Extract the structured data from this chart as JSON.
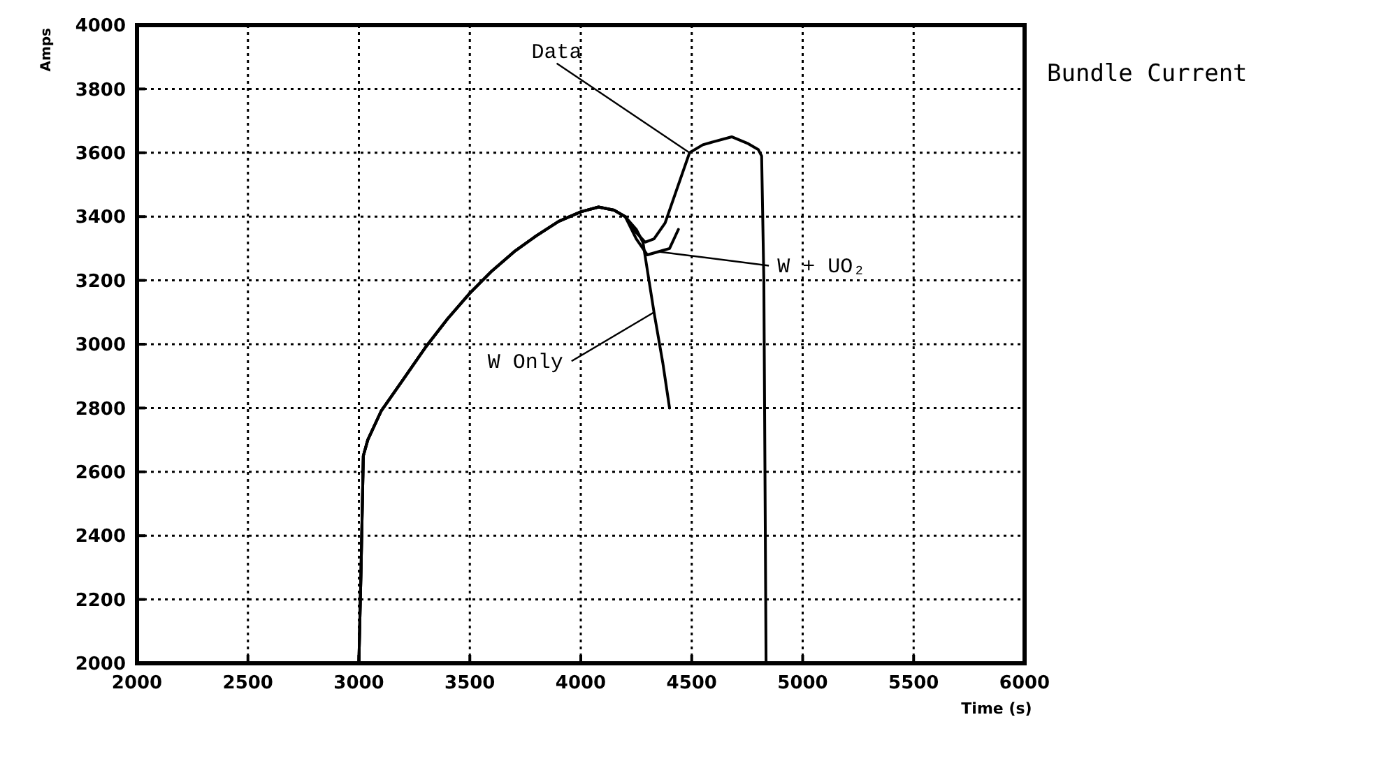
{
  "chart_data": {
    "type": "line",
    "title": "Bundle Current",
    "xlabel": "Time (s)",
    "ylabel": "Amps",
    "xlim": [
      2000,
      6000
    ],
    "xticks": [
      2000,
      2500,
      3000,
      3500,
      4000,
      4500,
      5000,
      5500,
      6000
    ],
    "ylim": [
      2000,
      4000
    ],
    "yticks": [
      2000,
      2200,
      2400,
      2600,
      2800,
      3000,
      3200,
      3400,
      3600,
      3800,
      4000
    ],
    "grid": true,
    "line_style": "solid",
    "marker": "none",
    "series": [
      {
        "name": "Data",
        "color": "#000000",
        "x": [
          3000,
          3010,
          3020,
          3040,
          3100,
          3200,
          3300,
          3400,
          3500,
          3600,
          3700,
          3800,
          3900,
          4000,
          4080,
          4150,
          4200,
          4250,
          4290,
          4330,
          4380,
          4430,
          4490,
          4550,
          4600,
          4680,
          4750,
          4800,
          4815,
          4825,
          4835
        ],
        "values": [
          2000,
          2300,
          2650,
          2700,
          2790,
          2890,
          2990,
          3080,
          3160,
          3230,
          3290,
          3340,
          3385,
          3415,
          3430,
          3420,
          3400,
          3350,
          3320,
          3330,
          3380,
          3480,
          3600,
          3625,
          3635,
          3650,
          3630,
          3610,
          3590,
          3200,
          2000
        ]
      },
      {
        "name": "W + UO₂",
        "color": "#000000",
        "x": [
          3000,
          3010,
          3020,
          3040,
          3100,
          3200,
          3300,
          3400,
          3500,
          3600,
          3700,
          3800,
          3900,
          4000,
          4080,
          4150,
          4200,
          4250,
          4300,
          4350,
          4400,
          4440
        ],
        "values": [
          2000,
          2300,
          2650,
          2700,
          2790,
          2890,
          2990,
          3080,
          3160,
          3230,
          3290,
          3340,
          3385,
          3415,
          3430,
          3420,
          3400,
          3330,
          3280,
          3290,
          3300,
          3360
        ]
      },
      {
        "name": "W Only",
        "color": "#000000",
        "x": [
          3000,
          3010,
          3020,
          3040,
          3100,
          3200,
          3300,
          3400,
          3500,
          3600,
          3700,
          3800,
          3900,
          4000,
          4080,
          4150,
          4200,
          4250,
          4280,
          4330,
          4370,
          4400
        ],
        "values": [
          2000,
          2300,
          2650,
          2700,
          2790,
          2890,
          2990,
          3080,
          3160,
          3230,
          3290,
          3340,
          3385,
          3415,
          3430,
          3420,
          3400,
          3360,
          3320,
          3100,
          2940,
          2800
        ]
      }
    ]
  }
}
